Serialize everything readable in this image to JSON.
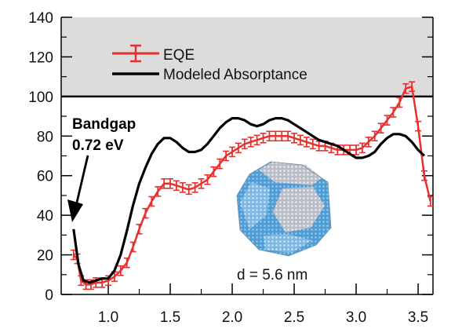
{
  "chart_data": {
    "type": "line",
    "xlim": [
      0.62,
      3.62
    ],
    "ylim": [
      0,
      140
    ],
    "x_ticks": [
      1.0,
      1.5,
      2.0,
      2.5,
      3.0,
      3.5
    ],
    "x_tick_labels": [
      "1.0",
      "1.5",
      "2.0",
      "2.5",
      "3.0",
      "3.5"
    ],
    "y_ticks": [
      0,
      20,
      40,
      60,
      80,
      100,
      120,
      140
    ],
    "y_tick_labels": [
      "0",
      "20",
      "40",
      "60",
      "80",
      "100",
      "120",
      "140"
    ],
    "shaded_region": {
      "y_from": 100,
      "y_to": 140,
      "color": "#dcdcdc"
    },
    "legend": {
      "placement": "top-left",
      "entries": [
        "EQE",
        "Modeled Absorptance"
      ]
    },
    "series": [
      {
        "name": "EQE",
        "color": "#e8302e",
        "error_bars": true,
        "x": [
          0.72,
          0.75,
          0.78,
          0.82,
          0.86,
          0.9,
          0.95,
          1.0,
          1.05,
          1.1,
          1.15,
          1.2,
          1.25,
          1.3,
          1.35,
          1.4,
          1.45,
          1.5,
          1.55,
          1.6,
          1.65,
          1.7,
          1.75,
          1.8,
          1.85,
          1.9,
          1.95,
          2.0,
          2.05,
          2.1,
          2.15,
          2.2,
          2.25,
          2.3,
          2.35,
          2.4,
          2.45,
          2.5,
          2.55,
          2.6,
          2.65,
          2.7,
          2.75,
          2.8,
          2.85,
          2.9,
          2.95,
          3.0,
          3.05,
          3.1,
          3.15,
          3.2,
          3.25,
          3.3,
          3.35,
          3.4,
          3.45,
          3.5,
          3.55,
          3.6
        ],
        "y": [
          20,
          18,
          7,
          5,
          5,
          6,
          6,
          7,
          9,
          12,
          16,
          24,
          33,
          41,
          47,
          52,
          56,
          56,
          55,
          54,
          53,
          54,
          56,
          58,
          62,
          66,
          70,
          72,
          74,
          76,
          77,
          78,
          79,
          80,
          80,
          80,
          80,
          79,
          78,
          77,
          76,
          75,
          75,
          74,
          73,
          73,
          73,
          73,
          74,
          77,
          80,
          84,
          88,
          92,
          97,
          104,
          105,
          85,
          60,
          47
        ]
      },
      {
        "name": "Modeled Absorptance",
        "color": "#000000",
        "error_bars": false,
        "x": [
          0.72,
          0.76,
          0.8,
          0.85,
          0.9,
          0.95,
          1.0,
          1.05,
          1.1,
          1.15,
          1.2,
          1.25,
          1.3,
          1.35,
          1.4,
          1.45,
          1.5,
          1.55,
          1.6,
          1.65,
          1.7,
          1.75,
          1.8,
          1.85,
          1.9,
          1.95,
          2.0,
          2.05,
          2.1,
          2.15,
          2.2,
          2.25,
          2.3,
          2.35,
          2.4,
          2.45,
          2.5,
          2.55,
          2.6,
          2.65,
          2.7,
          2.75,
          2.8,
          2.85,
          2.9,
          2.95,
          3.0,
          3.05,
          3.1,
          3.15,
          3.2,
          3.25,
          3.3,
          3.35,
          3.4,
          3.45,
          3.5,
          3.55
        ],
        "y": [
          33,
          15,
          7,
          6,
          7,
          8,
          8,
          12,
          20,
          32,
          45,
          56,
          64,
          71,
          76,
          79,
          79,
          77,
          74,
          72,
          72,
          73,
          76,
          80,
          84,
          87,
          89,
          89,
          88,
          86,
          85,
          86,
          88,
          89,
          89,
          88,
          86,
          84,
          82,
          80,
          78,
          77,
          76,
          75,
          73,
          71,
          69,
          69,
          70,
          72,
          76,
          79,
          81,
          81,
          80,
          77,
          73,
          70
        ]
      }
    ],
    "annotations": [
      {
        "lines": [
          "Bandgap",
          "0.72 eV"
        ],
        "arrow_to": {
          "x": 0.72,
          "y": 33
        }
      },
      {
        "text": "d = 5.6 nm"
      }
    ]
  },
  "icons": {
    "nanocrystal": "nanocrystal-image",
    "colors": {
      "face_blue": "#5aa7dc",
      "face_gray": "#c6cad0",
      "face_light": "#9fc9ea"
    }
  }
}
